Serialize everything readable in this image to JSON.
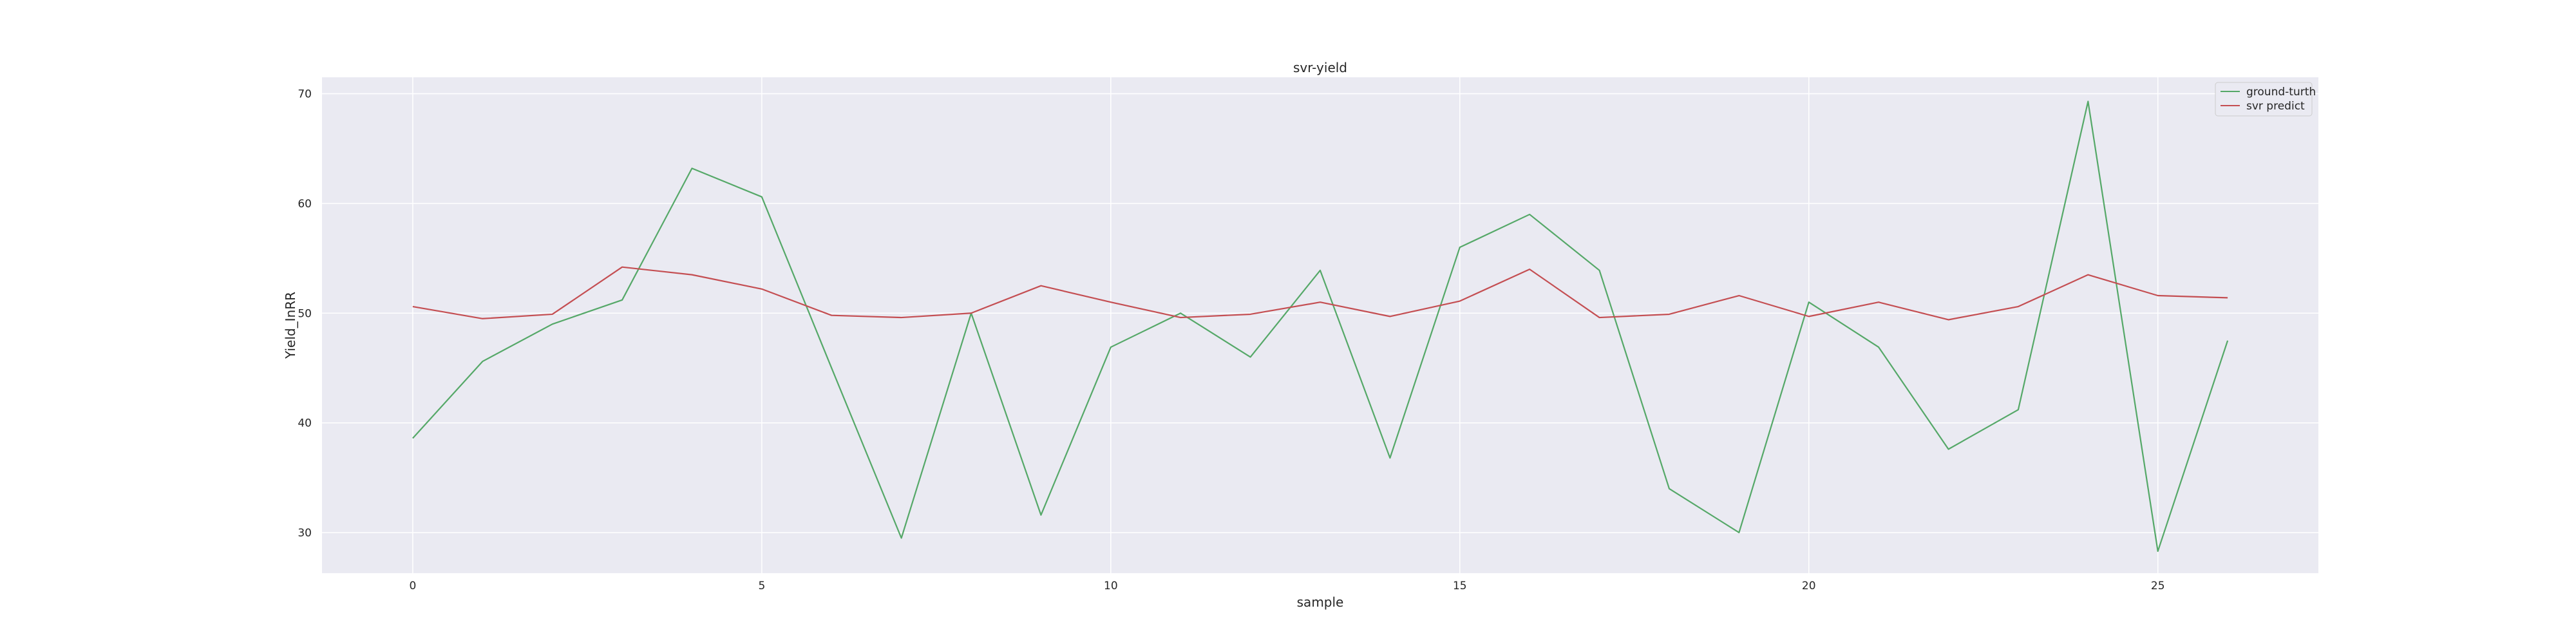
{
  "chart_data": {
    "type": "line",
    "title": "svr-yield",
    "xlabel": "sample",
    "ylabel": "Yield_InRR",
    "xlim": [
      -1.3,
      27.3
    ],
    "ylim": [
      26.3,
      71.5
    ],
    "xticks": [
      0,
      5,
      10,
      15,
      20,
      25
    ],
    "yticks": [
      30,
      40,
      50,
      60,
      70
    ],
    "grid": true,
    "legend_position": "top-right",
    "x": [
      0,
      1,
      2,
      3,
      4,
      5,
      6,
      7,
      8,
      9,
      10,
      11,
      12,
      13,
      14,
      15,
      16,
      17,
      18,
      19,
      20,
      21,
      22,
      23,
      24,
      25,
      26
    ],
    "series": [
      {
        "name": "ground-turth",
        "color": "#55a868",
        "values": [
          38.6,
          45.6,
          49.0,
          51.2,
          63.2,
          60.6,
          45.0,
          29.5,
          50.0,
          31.6,
          46.9,
          50.0,
          46.0,
          53.9,
          36.8,
          56.0,
          59.0,
          53.9,
          34.0,
          30.0,
          51.0,
          46.9,
          37.6,
          41.2,
          69.3,
          28.3,
          47.5
        ]
      },
      {
        "name": "svr predict",
        "color": "#c44e52",
        "values": [
          50.6,
          49.5,
          49.9,
          54.2,
          53.5,
          52.2,
          49.8,
          49.6,
          50.0,
          52.5,
          51.0,
          49.6,
          49.9,
          51.0,
          49.7,
          51.1,
          54.0,
          49.6,
          49.9,
          51.6,
          49.7,
          51.0,
          49.4,
          50.6,
          53.5,
          51.6,
          51.4
        ]
      }
    ]
  }
}
